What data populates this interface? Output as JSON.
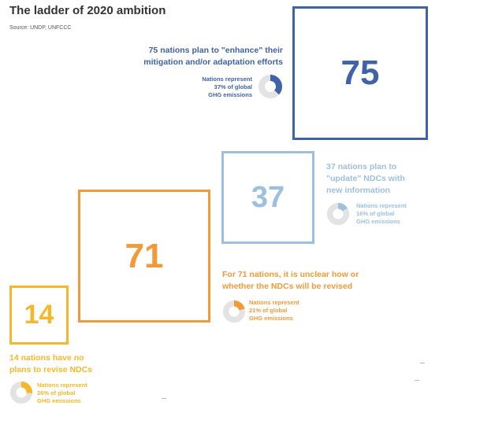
{
  "title": "The ladder of 2020 ambition",
  "source": "Source: UNDP, UNFCCC",
  "chart_data": {
    "type": "proportional-square",
    "title": "The ladder of 2020 ambition",
    "items": [
      {
        "id": "enhance",
        "count": "75",
        "value": 75,
        "description_lines": [
          "75 nations plan to \"enhance\" their",
          "mitigation and/or adaptation efforts"
        ],
        "share_lines": [
          "Nations represent",
          "37% of global",
          "GHG emissions"
        ],
        "share_pct": 37,
        "color": "#3f62a8"
      },
      {
        "id": "update",
        "count": "37",
        "value": 37,
        "description_lines": [
          "37 nations plan to",
          "\"update\" NDCs with",
          "new information"
        ],
        "share_lines": [
          "Nations represent",
          "16% of global",
          "GHG emissions"
        ],
        "share_pct": 16,
        "color": "#9cc0e0"
      },
      {
        "id": "unclear",
        "count": "71",
        "value": 71,
        "description_lines": [
          "For 71 nations, it is unclear how or",
          "whether the NDCs will be revised"
        ],
        "share_lines": [
          "Nations represent",
          "21% of global",
          "GHG emissions"
        ],
        "share_pct": 21,
        "color": "#f29a38"
      },
      {
        "id": "no-revision",
        "count": "14",
        "value": 14,
        "description_lines": [
          "14 nations have no",
          "plans to revise NDCs"
        ],
        "share_lines": [
          "Nations represent",
          "26% of global",
          "GHG emissions"
        ],
        "share_pct": 26,
        "color": "#f5b82a"
      }
    ],
    "donut_track_color": "#e3e3e3"
  }
}
